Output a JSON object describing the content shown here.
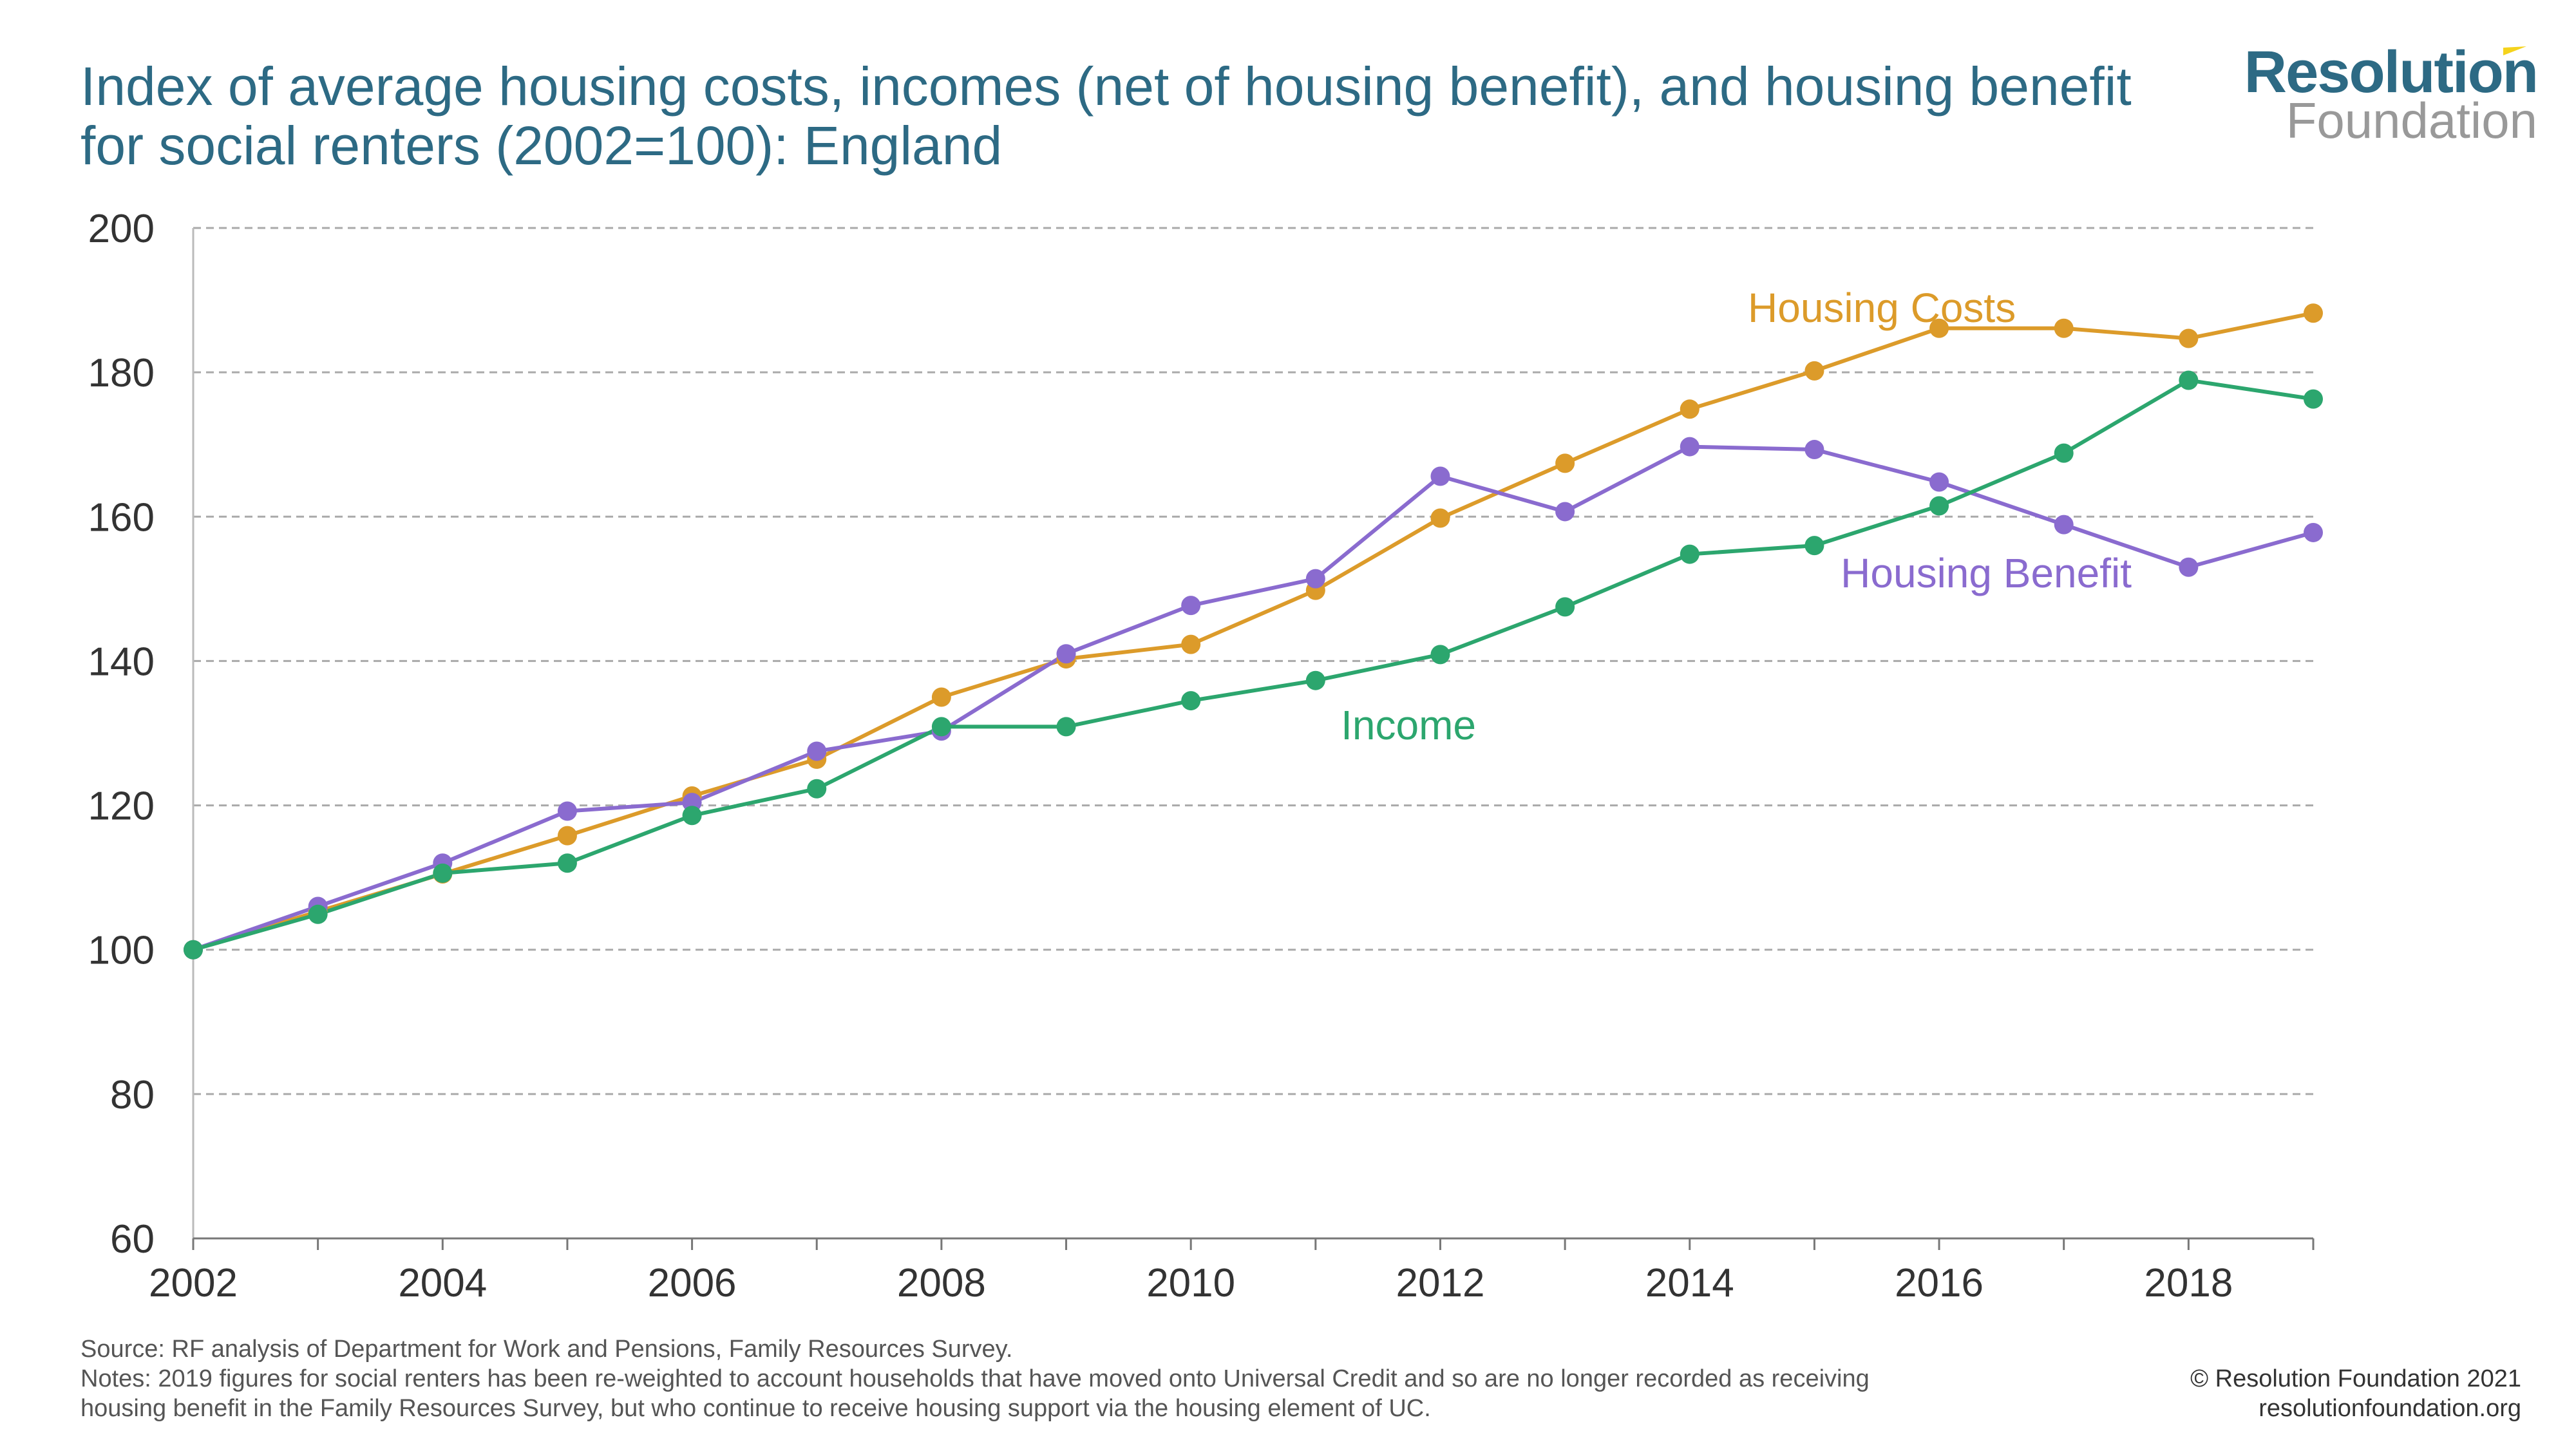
{
  "title": "Index of average housing costs, incomes (net of housing benefit), and housing benefit for social renters (2002=100): England",
  "logo": {
    "line1": "Resolution",
    "line2": "Foundation"
  },
  "chart_data": {
    "type": "line",
    "title": "Index of average housing costs, incomes (net of housing benefit), and housing benefit for social renters (2002=100): England",
    "x": [
      2002,
      2003,
      2004,
      2005,
      2006,
      2007,
      2008,
      2009,
      2010,
      2011,
      2012,
      2013,
      2014,
      2015,
      2016,
      2017,
      2018,
      2019
    ],
    "xticks": [
      2002,
      2004,
      2006,
      2008,
      2010,
      2012,
      2014,
      2016,
      2018
    ],
    "yticks": [
      60,
      80,
      100,
      120,
      140,
      160,
      180,
      200
    ],
    "xlim": [
      2002,
      2019
    ],
    "ylim": [
      60,
      200
    ],
    "grid": "horizontal dashed",
    "series": [
      {
        "name": "Housing Costs",
        "color": "#dc9b2a",
        "values": [
          100,
          105.3,
          110.5,
          115.8,
          121.3,
          126.4,
          135,
          140.3,
          142.3,
          149.8,
          159.8,
          167.4,
          174.9,
          180.2,
          186.1,
          186.1,
          184.7,
          188.2
        ]
      },
      {
        "name": "Housing Benefit",
        "color": "#8a6bcf",
        "values": [
          100,
          106,
          112,
          119.2,
          120.4,
          127.5,
          130.3,
          141,
          147.7,
          151.4,
          165.6,
          160.7,
          169.7,
          169.3,
          164.8,
          158.9,
          153,
          157.8
        ]
      },
      {
        "name": "Income",
        "color": "#2ca66e",
        "values": [
          100,
          104.9,
          110.6,
          112,
          118.6,
          122.3,
          130.9,
          130.9,
          134.5,
          137.3,
          140.9,
          147.5,
          154.8,
          156,
          161.5,
          168.8,
          178.9,
          176.3
        ]
      }
    ]
  },
  "footer": {
    "source": "Source: RF analysis of Department for Work and Pensions, Family Resources Survey.",
    "notes1": "Notes: 2019 figures for social renters has been re-weighted to account households that have moved onto Universal Credit and so are no longer recorded as receiving",
    "notes2": "housing benefit in the Family Resources Survey, but who continue to receive housing support via the housing element of UC.",
    "copyright": "© Resolution Foundation 2021",
    "website": "resolutionfoundation.org"
  }
}
